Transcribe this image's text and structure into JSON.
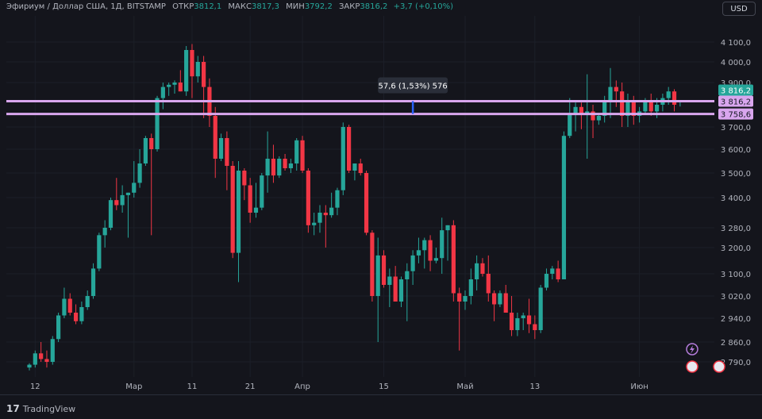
{
  "header": {
    "symbol": "Эфириум / Доллар США, 1Д, BITSTAMP",
    "open_label": "ОТКР",
    "open": "3812,1",
    "high_label": "МАКС",
    "high": "3817,3",
    "low_label": "МИН",
    "low": "3792,2",
    "close_label": "ЗАКР",
    "close": "3816,2",
    "change": "+3,7 (+0,10%)"
  },
  "currency": "USD",
  "footer": {
    "brand": "TradingView"
  },
  "colors": {
    "up": "#26a69a",
    "down": "#f23645",
    "level": "#d9a6ee",
    "background": "#14151c"
  },
  "chart_data": {
    "type": "candlestick",
    "ylim": [
      2760,
      4160
    ],
    "y_ticks": [
      {
        "v": 4100,
        "label": "4 100,0"
      },
      {
        "v": 4000,
        "label": "4 000,0"
      },
      {
        "v": 3900,
        "label": "3 900,0"
      },
      {
        "v": 3700,
        "label": "3 700,0"
      },
      {
        "v": 3600,
        "label": "3 600,0"
      },
      {
        "v": 3500,
        "label": "3 500,0"
      },
      {
        "v": 3400,
        "label": "3 400,0"
      },
      {
        "v": 3280,
        "label": "3 280,0"
      },
      {
        "v": 3200,
        "label": "3 200,0"
      },
      {
        "v": 3100,
        "label": "3 100,0"
      },
      {
        "v": 3020,
        "label": "3 020,0"
      },
      {
        "v": 2940,
        "label": "2 940,0"
      },
      {
        "v": 2860,
        "label": "2 860,0"
      },
      {
        "v": 2790,
        "label": "2 790,0"
      }
    ],
    "x_ticks": [
      {
        "i": 1,
        "label": "12"
      },
      {
        "i": 18,
        "label": "Мар"
      },
      {
        "i": 28,
        "label": "11"
      },
      {
        "i": 38,
        "label": "21"
      },
      {
        "i": 47,
        "label": "Апр"
      },
      {
        "i": 61,
        "label": "15"
      },
      {
        "i": 75,
        "label": "Май"
      },
      {
        "i": 87,
        "label": "13"
      },
      {
        "i": 105,
        "label": "Июн"
      }
    ],
    "price_tags": [
      {
        "v": 3816.2,
        "label": "3 816,2",
        "kind": "last"
      },
      {
        "v": 3816.2,
        "label": "3 816,2",
        "kind": "level"
      },
      {
        "v": 3758.6,
        "label": "3 758,6",
        "kind": "level"
      }
    ],
    "levels": [
      3816.2,
      3758.6
    ],
    "measure": {
      "label": "57,6 (1,53%) 576",
      "from": 3758.6,
      "to": 3816.2,
      "i": 66
    },
    "candles": [
      {
        "o": 2770,
        "h": 2785,
        "l": 2760,
        "c": 2780
      },
      {
        "o": 2780,
        "h": 2830,
        "l": 2770,
        "c": 2820
      },
      {
        "o": 2820,
        "h": 2860,
        "l": 2790,
        "c": 2800
      },
      {
        "o": 2800,
        "h": 2830,
        "l": 2770,
        "c": 2790
      },
      {
        "o": 2790,
        "h": 2880,
        "l": 2780,
        "c": 2870
      },
      {
        "o": 2870,
        "h": 2960,
        "l": 2860,
        "c": 2950
      },
      {
        "o": 2950,
        "h": 3050,
        "l": 2940,
        "c": 3010
      },
      {
        "o": 3010,
        "h": 3030,
        "l": 2950,
        "c": 2960
      },
      {
        "o": 2960,
        "h": 2990,
        "l": 2920,
        "c": 2930
      },
      {
        "o": 2930,
        "h": 3000,
        "l": 2920,
        "c": 2980
      },
      {
        "o": 2980,
        "h": 3040,
        "l": 2970,
        "c": 3020
      },
      {
        "o": 3020,
        "h": 3140,
        "l": 3010,
        "c": 3120
      },
      {
        "o": 3120,
        "h": 3260,
        "l": 3110,
        "c": 3250
      },
      {
        "o": 3250,
        "h": 3310,
        "l": 3200,
        "c": 3280
      },
      {
        "o": 3280,
        "h": 3400,
        "l": 3270,
        "c": 3390
      },
      {
        "o": 3390,
        "h": 3480,
        "l": 3350,
        "c": 3370
      },
      {
        "o": 3370,
        "h": 3450,
        "l": 3340,
        "c": 3410
      },
      {
        "o": 3410,
        "h": 3420,
        "l": 3240,
        "c": 3420
      },
      {
        "o": 3420,
        "h": 3550,
        "l": 3400,
        "c": 3460
      },
      {
        "o": 3460,
        "h": 3600,
        "l": 3440,
        "c": 3540
      },
      {
        "o": 3540,
        "h": 3660,
        "l": 3530,
        "c": 3650
      },
      {
        "o": 3650,
        "h": 3670,
        "l": 3250,
        "c": 3600
      },
      {
        "o": 3600,
        "h": 3840,
        "l": 3590,
        "c": 3830
      },
      {
        "o": 3830,
        "h": 3900,
        "l": 3780,
        "c": 3880
      },
      {
        "o": 3880,
        "h": 3900,
        "l": 3840,
        "c": 3890
      },
      {
        "o": 3890,
        "h": 3910,
        "l": 3850,
        "c": 3900
      },
      {
        "o": 3900,
        "h": 3960,
        "l": 3860,
        "c": 3860
      },
      {
        "o": 3860,
        "h": 4080,
        "l": 3840,
        "c": 4060
      },
      {
        "o": 4060,
        "h": 4090,
        "l": 3830,
        "c": 3930
      },
      {
        "o": 3930,
        "h": 4030,
        "l": 3900,
        "c": 4000
      },
      {
        "o": 4000,
        "h": 4030,
        "l": 3740,
        "c": 3880
      },
      {
        "o": 3880,
        "h": 3920,
        "l": 3700,
        "c": 3750
      },
      {
        "o": 3750,
        "h": 3790,
        "l": 3480,
        "c": 3560
      },
      {
        "o": 3560,
        "h": 3670,
        "l": 3550,
        "c": 3650
      },
      {
        "o": 3650,
        "h": 3680,
        "l": 3430,
        "c": 3530
      },
      {
        "o": 3530,
        "h": 3550,
        "l": 3160,
        "c": 3180
      },
      {
        "o": 3180,
        "h": 3550,
        "l": 3070,
        "c": 3510
      },
      {
        "o": 3510,
        "h": 3520,
        "l": 3390,
        "c": 3450
      },
      {
        "o": 3450,
        "h": 3480,
        "l": 3300,
        "c": 3340
      },
      {
        "o": 3340,
        "h": 3460,
        "l": 3320,
        "c": 3360
      },
      {
        "o": 3360,
        "h": 3500,
        "l": 3350,
        "c": 3490
      },
      {
        "o": 3490,
        "h": 3680,
        "l": 3420,
        "c": 3560
      },
      {
        "o": 3560,
        "h": 3620,
        "l": 3460,
        "c": 3490
      },
      {
        "o": 3490,
        "h": 3570,
        "l": 3480,
        "c": 3560
      },
      {
        "o": 3560,
        "h": 3580,
        "l": 3510,
        "c": 3520
      },
      {
        "o": 3520,
        "h": 3560,
        "l": 3500,
        "c": 3540
      },
      {
        "o": 3540,
        "h": 3650,
        "l": 3510,
        "c": 3640
      },
      {
        "o": 3640,
        "h": 3660,
        "l": 3500,
        "c": 3510
      },
      {
        "o": 3510,
        "h": 3520,
        "l": 3260,
        "c": 3290
      },
      {
        "o": 3290,
        "h": 3340,
        "l": 3250,
        "c": 3300
      },
      {
        "o": 3300,
        "h": 3370,
        "l": 3260,
        "c": 3340
      },
      {
        "o": 3340,
        "h": 3370,
        "l": 3200,
        "c": 3330
      },
      {
        "o": 3330,
        "h": 3420,
        "l": 3320,
        "c": 3360
      },
      {
        "o": 3360,
        "h": 3440,
        "l": 3330,
        "c": 3430
      },
      {
        "o": 3430,
        "h": 3720,
        "l": 3410,
        "c": 3700
      },
      {
        "o": 3700,
        "h": 3710,
        "l": 3500,
        "c": 3510
      },
      {
        "o": 3510,
        "h": 3540,
        "l": 3470,
        "c": 3540
      },
      {
        "o": 3540,
        "h": 3560,
        "l": 3490,
        "c": 3500
      },
      {
        "o": 3500,
        "h": 3510,
        "l": 3250,
        "c": 3260
      },
      {
        "o": 3260,
        "h": 3270,
        "l": 3000,
        "c": 3020
      },
      {
        "o": 3020,
        "h": 3240,
        "l": 2860,
        "c": 3170
      },
      {
        "o": 3170,
        "h": 3190,
        "l": 3050,
        "c": 3060
      },
      {
        "o": 3060,
        "h": 3120,
        "l": 2980,
        "c": 3090
      },
      {
        "o": 3090,
        "h": 3130,
        "l": 3000,
        "c": 3000
      },
      {
        "o": 3000,
        "h": 3090,
        "l": 2980,
        "c": 3080
      },
      {
        "o": 3080,
        "h": 3140,
        "l": 2930,
        "c": 3110
      },
      {
        "o": 3110,
        "h": 3190,
        "l": 3060,
        "c": 3170
      },
      {
        "o": 3170,
        "h": 3240,
        "l": 3140,
        "c": 3190
      },
      {
        "o": 3190,
        "h": 3240,
        "l": 3120,
        "c": 3230
      },
      {
        "o": 3230,
        "h": 3250,
        "l": 3110,
        "c": 3150
      },
      {
        "o": 3150,
        "h": 3200,
        "l": 3140,
        "c": 3160
      },
      {
        "o": 3160,
        "h": 3320,
        "l": 3100,
        "c": 3270
      },
      {
        "o": 3270,
        "h": 3290,
        "l": 3150,
        "c": 3290
      },
      {
        "o": 3290,
        "h": 3310,
        "l": 3000,
        "c": 3030
      },
      {
        "o": 3030,
        "h": 3050,
        "l": 2830,
        "c": 3000
      },
      {
        "o": 3000,
        "h": 3040,
        "l": 2970,
        "c": 3020
      },
      {
        "o": 3020,
        "h": 3120,
        "l": 2990,
        "c": 3080
      },
      {
        "o": 3080,
        "h": 3170,
        "l": 3040,
        "c": 3140
      },
      {
        "o": 3140,
        "h": 3160,
        "l": 3090,
        "c": 3100
      },
      {
        "o": 3100,
        "h": 3170,
        "l": 3000,
        "c": 3030
      },
      {
        "o": 3030,
        "h": 3040,
        "l": 2930,
        "c": 2990
      },
      {
        "o": 2990,
        "h": 3040,
        "l": 2980,
        "c": 3030
      },
      {
        "o": 3030,
        "h": 3060,
        "l": 2960,
        "c": 2960
      },
      {
        "o": 2960,
        "h": 3020,
        "l": 2880,
        "c": 2900
      },
      {
        "o": 2900,
        "h": 2960,
        "l": 2880,
        "c": 2940
      },
      {
        "o": 2940,
        "h": 2960,
        "l": 2900,
        "c": 2950
      },
      {
        "o": 2950,
        "h": 3010,
        "l": 2890,
        "c": 2920
      },
      {
        "o": 2920,
        "h": 2950,
        "l": 2870,
        "c": 2900
      },
      {
        "o": 2900,
        "h": 3060,
        "l": 2890,
        "c": 3050
      },
      {
        "o": 3050,
        "h": 3120,
        "l": 3040,
        "c": 3100
      },
      {
        "o": 3100,
        "h": 3130,
        "l": 3080,
        "c": 3120
      },
      {
        "o": 3120,
        "h": 3150,
        "l": 3070,
        "c": 3080
      },
      {
        "o": 3080,
        "h": 3680,
        "l": 3080,
        "c": 3660
      },
      {
        "o": 3660,
        "h": 3830,
        "l": 3650,
        "c": 3760
      },
      {
        "o": 3760,
        "h": 3810,
        "l": 3680,
        "c": 3790
      },
      {
        "o": 3790,
        "h": 3810,
        "l": 3690,
        "c": 3760
      },
      {
        "o": 3760,
        "h": 3940,
        "l": 3560,
        "c": 3770
      },
      {
        "o": 3770,
        "h": 3800,
        "l": 3650,
        "c": 3730
      },
      {
        "o": 3730,
        "h": 3760,
        "l": 3710,
        "c": 3750
      },
      {
        "o": 3750,
        "h": 3840,
        "l": 3720,
        "c": 3820
      },
      {
        "o": 3820,
        "h": 3970,
        "l": 3740,
        "c": 3880
      },
      {
        "o": 3880,
        "h": 3910,
        "l": 3790,
        "c": 3860
      },
      {
        "o": 3860,
        "h": 3900,
        "l": 3700,
        "c": 3750
      },
      {
        "o": 3750,
        "h": 3850,
        "l": 3700,
        "c": 3820
      },
      {
        "o": 3820,
        "h": 3840,
        "l": 3710,
        "c": 3750
      },
      {
        "o": 3750,
        "h": 3790,
        "l": 3720,
        "c": 3770
      },
      {
        "o": 3770,
        "h": 3830,
        "l": 3760,
        "c": 3820
      },
      {
        "o": 3820,
        "h": 3850,
        "l": 3750,
        "c": 3770
      },
      {
        "o": 3770,
        "h": 3830,
        "l": 3740,
        "c": 3800
      },
      {
        "o": 3800,
        "h": 3850,
        "l": 3770,
        "c": 3830
      },
      {
        "o": 3830,
        "h": 3880,
        "l": 3800,
        "c": 3860
      },
      {
        "o": 3860,
        "h": 3870,
        "l": 3770,
        "c": 3800
      },
      {
        "o": 3812.1,
        "h": 3817.3,
        "l": 3792.2,
        "c": 3816.2
      }
    ]
  }
}
